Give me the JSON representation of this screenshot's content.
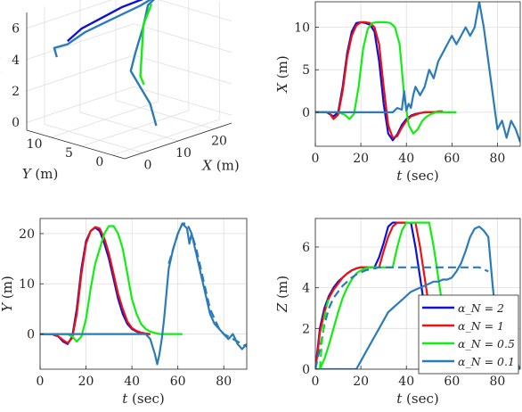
{
  "colors": {
    "blue": "#1010d6",
    "red": "#ee1111",
    "green": "#11ee11",
    "steel": "#2b7bb9",
    "grid": "#dedede",
    "axis": "#262626"
  },
  "chart_data": [
    {
      "id": "traj3d",
      "type": "line3d",
      "xlabel": "X (m)",
      "ylabel": "Y (m)",
      "zlabel": "Z (m)",
      "x_ticks": [
        "0",
        "10",
        "20"
      ],
      "y_ticks": [
        "0",
        "5",
        "10"
      ],
      "z_ticks": [
        "0",
        "2",
        "4",
        "6"
      ],
      "xlim": [
        -5,
        25
      ],
      "ylim": [
        -2,
        14
      ],
      "zlim": [
        -0.5,
        7
      ],
      "grid": true,
      "series": [
        {
          "color": "steel",
          "points": [
            [
              9,
              1,
              0.2
            ],
            [
              9,
              2,
              1.5
            ],
            [
              8,
              3,
              2.5
            ],
            [
              7,
              4,
              3.5
            ],
            [
              10,
              5,
              4.3
            ],
            [
              14,
              6,
              5.6
            ],
            [
              17,
              7,
              6.6
            ],
            [
              22,
              8,
              6.8
            ],
            [
              20,
              10,
              6
            ],
            [
              14,
              11,
              5.5
            ],
            [
              8,
              12,
              5
            ],
            [
              3,
              12,
              4.6
            ],
            [
              1,
              13,
              4.4
            ],
            [
              0,
              12,
              4
            ]
          ]
        },
        {
          "color": "blue",
          "points": [
            [
              22,
              8,
              6.9
            ],
            [
              15,
              10,
              6.3
            ],
            [
              7,
              12,
              5.3
            ],
            [
              3,
              12,
              4.8
            ]
          ]
        },
        {
          "color": "green",
          "points": [
            [
              9,
              3,
              2.6
            ],
            [
              8,
              3,
              3.2
            ],
            [
              14,
              6,
              5.7
            ],
            [
              18,
              7,
              6.6
            ]
          ]
        }
      ]
    },
    {
      "id": "x_vs_t",
      "type": "line",
      "xlabel": "t (sec)",
      "ylabel": "X (m)",
      "xlim": [
        0,
        90
      ],
      "ylim": [
        -4,
        13
      ],
      "x_ticks": [
        0,
        20,
        40,
        60,
        80
      ],
      "y_ticks": [
        0,
        5,
        10
      ],
      "grid": true,
      "series": [
        {
          "color": "blue",
          "dash": false,
          "x": [
            0,
            5,
            8,
            10,
            12,
            14,
            16,
            18,
            20,
            22,
            24,
            26,
            28,
            30,
            32,
            34,
            36,
            38,
            40,
            42,
            44,
            46,
            48,
            50,
            52,
            54,
            56
          ],
          "y": [
            0,
            0,
            -0.5,
            0,
            3,
            7,
            9.5,
            10.5,
            10.6,
            10.5,
            10.3,
            9.5,
            6,
            1,
            -2.5,
            -3.3,
            -2.6,
            -1.5,
            -0.8,
            -0.4,
            -0.2,
            -0.1,
            0,
            0,
            0,
            0,
            0
          ]
        },
        {
          "color": "red",
          "dash": false,
          "x": [
            0,
            6,
            8,
            10,
            12,
            14,
            16,
            18,
            20,
            22,
            24,
            26,
            28,
            30,
            32,
            34,
            36,
            38,
            40,
            42,
            44,
            46,
            48,
            50,
            52,
            54,
            56
          ],
          "y": [
            0,
            0,
            -0.8,
            -0.3,
            2.5,
            6.5,
            9,
            10.2,
            10.6,
            10.6,
            10.5,
            10,
            8,
            3,
            -1.5,
            -3,
            -2.8,
            -1.8,
            -1,
            -0.5,
            -0.3,
            -0.1,
            0,
            0,
            0,
            0.1,
            0.1
          ]
        },
        {
          "color": "green",
          "dash": false,
          "x": [
            0,
            10,
            13,
            15,
            17,
            19,
            21,
            23,
            25,
            27,
            29,
            31,
            33,
            35,
            37,
            39,
            41,
            43,
            45,
            47,
            49,
            51,
            53,
            55,
            57,
            60,
            62
          ],
          "y": [
            0,
            0,
            -0.3,
            -0.8,
            -0.2,
            3,
            7.5,
            9.8,
            10.5,
            10.6,
            10.6,
            10.6,
            10.5,
            10,
            8,
            2,
            -1.5,
            -2.5,
            -2,
            -1,
            -0.5,
            -0.2,
            0,
            0,
            0,
            0,
            0
          ]
        },
        {
          "color": "steel",
          "dash": false,
          "x": [
            0,
            10,
            20,
            30,
            34,
            36,
            38,
            39,
            40,
            41,
            42,
            43,
            44,
            46,
            48,
            50,
            52,
            54,
            56,
            58,
            60,
            62,
            64,
            66,
            68,
            70,
            72,
            74,
            76,
            78,
            80,
            82,
            84,
            86,
            88,
            90
          ],
          "y": [
            0,
            0,
            0,
            0,
            0,
            0.5,
            0.3,
            2.5,
            0.2,
            1,
            0.5,
            2,
            3,
            2,
            3,
            5,
            4,
            6,
            7,
            8,
            9,
            8,
            9,
            10,
            9,
            10,
            13,
            10,
            6,
            2,
            -2,
            -1,
            -3,
            -1,
            -2,
            -3.5
          ]
        }
      ]
    },
    {
      "id": "y_vs_t",
      "type": "line",
      "xlabel": "t (sec)",
      "ylabel": "Y (m)",
      "xlim": [
        0,
        90
      ],
      "ylim": [
        -7,
        23
      ],
      "x_ticks": [
        0,
        20,
        40,
        60,
        80
      ],
      "y_ticks": [
        0,
        10,
        20
      ],
      "grid": true,
      "series": [
        {
          "color": "blue",
          "dash": false,
          "x": [
            0,
            5,
            8,
            10,
            12,
            14,
            16,
            18,
            20,
            22,
            24,
            26,
            28,
            30,
            32,
            34,
            36,
            38,
            40,
            42,
            44,
            46,
            48
          ],
          "y": [
            0,
            0,
            -0.5,
            -1.5,
            -2,
            -0.5,
            5,
            13,
            18.5,
            20.5,
            21.2,
            20.5,
            18,
            15,
            11,
            7,
            4,
            2,
            1,
            0.5,
            0.2,
            0,
            0
          ]
        },
        {
          "color": "red",
          "dash": false,
          "x": [
            0,
            6,
            8,
            10,
            12,
            14,
            16,
            18,
            20,
            22,
            24,
            26,
            28,
            30,
            32,
            34,
            36,
            38,
            40,
            42,
            44,
            46,
            48
          ],
          "y": [
            0,
            0,
            -0.5,
            -1.2,
            -1.8,
            -0.8,
            4,
            12,
            18,
            20.5,
            21.3,
            21,
            19,
            16,
            12,
            8,
            5,
            2.5,
            1.2,
            0.6,
            0.3,
            0.1,
            0
          ]
        },
        {
          "color": "green",
          "dash": false,
          "x": [
            0,
            12,
            14,
            16,
            18,
            20,
            22,
            24,
            26,
            28,
            30,
            32,
            34,
            36,
            38,
            40,
            42,
            44,
            46,
            48,
            50,
            52,
            54,
            56,
            58,
            60,
            62
          ],
          "y": [
            0,
            0,
            -0.5,
            -1.5,
            -0.5,
            3,
            9,
            14,
            17,
            20,
            21.5,
            21.5,
            20,
            17,
            12,
            7,
            4,
            2,
            1,
            0.5,
            0.2,
            0,
            0,
            0,
            0,
            0,
            0
          ]
        },
        {
          "color": "steel",
          "dash": false,
          "x": [
            0,
            10,
            20,
            30,
            40,
            46,
            48,
            50,
            51,
            52,
            53,
            54,
            55,
            56,
            57,
            58,
            60,
            62,
            64,
            65,
            66,
            68,
            70,
            72,
            74,
            76,
            78,
            80,
            82,
            84,
            86,
            88,
            90
          ],
          "y": [
            0,
            0,
            0,
            0,
            0,
            0,
            -1,
            -4,
            -6,
            -4,
            -1,
            3,
            8,
            13,
            15,
            17,
            20,
            22,
            21,
            18,
            20,
            16,
            12,
            8,
            4,
            2,
            1,
            0,
            -1,
            0,
            -2,
            -3,
            -2
          ]
        },
        {
          "color": "steel",
          "dash": true,
          "x": [
            56,
            58,
            60,
            62,
            64,
            66,
            68,
            70,
            72,
            74,
            76,
            78,
            80,
            82,
            84,
            86,
            88,
            90
          ],
          "y": [
            14,
            17,
            20,
            22,
            22,
            20,
            17,
            13,
            9,
            5,
            3,
            1,
            0,
            -0.5,
            -1,
            -1.5,
            -2,
            -2.5
          ]
        }
      ]
    },
    {
      "id": "z_vs_t",
      "type": "line",
      "xlabel": "t (sec)",
      "ylabel": "Z (m)",
      "xlim": [
        0,
        90
      ],
      "ylim": [
        0,
        7.4
      ],
      "x_ticks": [
        0,
        20,
        40,
        60,
        80
      ],
      "y_ticks": [
        0,
        2,
        4,
        6
      ],
      "grid": true,
      "legend_position": "lower-right",
      "series": [
        {
          "name": "α_N = 2",
          "color": "blue",
          "dash": false,
          "x": [
            0,
            1,
            2,
            4,
            6,
            8,
            10,
            12,
            14,
            16,
            18,
            20,
            22,
            24,
            26,
            28,
            30,
            32,
            34,
            36,
            38,
            40,
            42,
            44,
            46,
            48,
            50,
            52
          ],
          "y": [
            0,
            1,
            2,
            3,
            3.6,
            4,
            4.3,
            4.5,
            4.7,
            4.85,
            4.95,
            5,
            5,
            5,
            5,
            5.5,
            6.2,
            7,
            7.2,
            7.2,
            7.2,
            7.2,
            7.2,
            6,
            4.5,
            3,
            1.5,
            0
          ]
        },
        {
          "name": "α_N = 1",
          "color": "red",
          "dash": false,
          "x": [
            0,
            1,
            2,
            4,
            6,
            8,
            10,
            12,
            14,
            16,
            18,
            20,
            22,
            24,
            26,
            28,
            30,
            32,
            34,
            36,
            38,
            40,
            42,
            44,
            46,
            48,
            50,
            52,
            54
          ],
          "y": [
            0,
            0.8,
            1.8,
            2.8,
            3.5,
            3.9,
            4.2,
            4.5,
            4.7,
            4.85,
            4.95,
            5,
            5,
            5,
            5,
            5,
            5.8,
            6.5,
            7,
            7.2,
            7.2,
            7.2,
            7.2,
            7.2,
            6,
            4.5,
            3,
            1.5,
            0
          ]
        },
        {
          "name": "α_N = 0.5",
          "color": "green",
          "dash": false,
          "x": [
            0,
            2,
            4,
            6,
            8,
            10,
            12,
            14,
            16,
            18,
            20,
            22,
            24,
            26,
            28,
            30,
            32,
            34,
            36,
            38,
            40,
            42,
            44,
            46,
            48,
            50,
            52,
            54,
            56,
            58,
            60
          ],
          "y": [
            0,
            0,
            0.5,
            1.2,
            2,
            2.8,
            3.5,
            4,
            4.4,
            4.7,
            4.85,
            4.95,
            5,
            5,
            5,
            5,
            5,
            5,
            6,
            6.8,
            7.2,
            7.2,
            7.2,
            7.2,
            7.2,
            7.2,
            6,
            4.5,
            3,
            1.5,
            0
          ]
        },
        {
          "name": "α_N = 0.1",
          "color": "steel",
          "dash": false,
          "x": [
            0,
            10,
            18,
            20,
            22,
            24,
            26,
            28,
            30,
            32,
            34,
            36,
            38,
            40,
            42,
            44,
            46,
            48,
            50,
            52,
            54,
            56,
            58,
            60,
            62,
            64,
            66,
            68,
            70,
            72,
            74,
            76,
            78,
            80,
            82,
            84,
            86,
            88,
            90
          ],
          "y": [
            0,
            0,
            0,
            0.4,
            0.8,
            1.2,
            1.6,
            2,
            2.4,
            2.8,
            3,
            3.2,
            3.4,
            3.6,
            3.8,
            3.9,
            4,
            4.1,
            4.2,
            4.3,
            4.3,
            4.4,
            4.4,
            4.5,
            4.8,
            5.2,
            5.8,
            6.5,
            6.9,
            7,
            6.8,
            6.5,
            4,
            2,
            1.5,
            1,
            0.7,
            0.4,
            0
          ]
        },
        {
          "color": "steel",
          "dash": true,
          "x": [
            0,
            2,
            4,
            6,
            8,
            10,
            12,
            14,
            16,
            18,
            20,
            22,
            24,
            26,
            28,
            30,
            35,
            40,
            45,
            50,
            55,
            60,
            65,
            70,
            72,
            74,
            76
          ],
          "y": [
            0,
            1,
            2.2,
            3,
            3.5,
            3.8,
            4.1,
            4.3,
            4.5,
            4.65,
            4.75,
            4.85,
            4.9,
            4.95,
            5,
            5,
            5,
            5,
            5,
            5,
            5,
            5,
            5,
            5,
            5,
            4.9,
            4.8
          ]
        },
        {
          "color": "green",
          "dash": true,
          "x": [
            2,
            3,
            4,
            5,
            6
          ],
          "y": [
            0,
            1.5,
            2.5,
            3.1,
            3.5
          ]
        }
      ]
    }
  ]
}
